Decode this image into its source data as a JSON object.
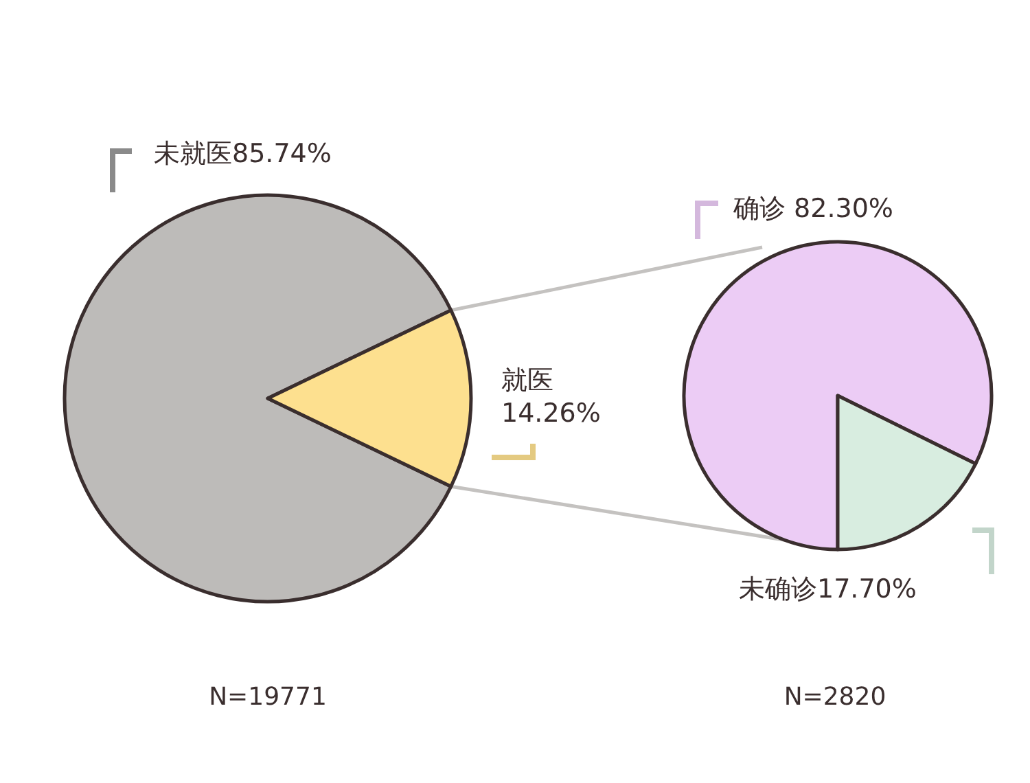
{
  "chart_data": [
    {
      "type": "pie",
      "categories": [
        "未就医",
        "就医"
      ],
      "values": [
        85.74,
        14.26
      ],
      "value_labels": [
        "85.74%",
        "14.26%"
      ],
      "colors": [
        "#bdbbb9",
        "#fde08f"
      ],
      "annotations": [
        "N=19771"
      ]
    },
    {
      "type": "pie",
      "categories": [
        "确诊",
        "未确诊"
      ],
      "values": [
        82.3,
        17.7
      ],
      "value_labels": [
        "82.30%",
        "17.70%"
      ],
      "colors": [
        "#ecccf5",
        "#d8ede0"
      ],
      "annotations": [
        "N=2820"
      ]
    }
  ]
}
